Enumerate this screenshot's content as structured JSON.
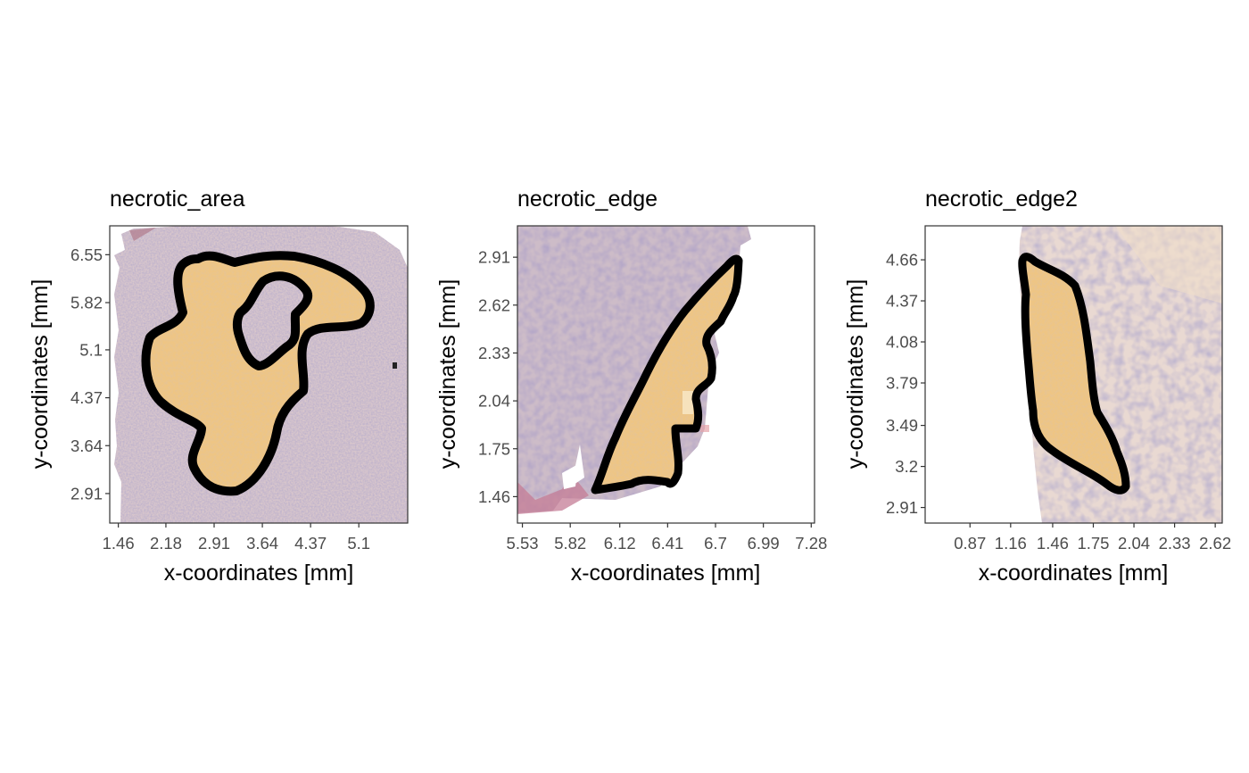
{
  "figure": {
    "background": "#ffffff"
  },
  "style": {
    "outline_color": "#000000",
    "region_fill": "#f2c98a",
    "tissue_light": "#e6d4cf",
    "tissue_dark": "#7a6a9a",
    "tissue_pink": "#c08aa0",
    "tick_label_color": "#4d4d4d"
  },
  "chart_data": [
    {
      "type": "image",
      "title": "necrotic_area",
      "xlabel": "x-coordinates [mm]",
      "ylabel": "y-coordinates [mm]",
      "xticks": [
        "1.46",
        "2.18",
        "2.91",
        "3.64",
        "4.37",
        "5.1"
      ],
      "yticks": [
        "6.55",
        "5.82",
        "5.1",
        "4.37",
        "3.64",
        "2.91"
      ],
      "xlim": [
        1.33,
        5.84
      ],
      "ylim": [
        2.46,
        6.99
      ],
      "grid": false,
      "annotation_region": "necrotic_area"
    },
    {
      "type": "image",
      "title": "necrotic_edge",
      "xlabel": "x-coordinates [mm]",
      "ylabel": "y-coordinates [mm]",
      "xticks": [
        "5.53",
        "5.82",
        "6.12",
        "6.41",
        "6.7",
        "6.99",
        "7.28"
      ],
      "yticks": [
        "2.91",
        "2.62",
        "2.33",
        "2.04",
        "1.75",
        "1.46"
      ],
      "xlim": [
        5.5,
        7.3
      ],
      "ylim": [
        1.3,
        3.1
      ],
      "grid": false,
      "annotation_region": "necrotic_edge"
    },
    {
      "type": "image",
      "title": "necrotic_edge2",
      "xlabel": "x-coordinates [mm]",
      "ylabel": "y-coordinates [mm]",
      "xticks": [
        "0.87",
        "1.16",
        "1.46",
        "1.75",
        "2.04",
        "2.33",
        "2.62"
      ],
      "yticks": [
        "4.66",
        "4.37",
        "4.08",
        "3.79",
        "3.49",
        "3.2",
        "2.91"
      ],
      "xlim": [
        0.55,
        2.67
      ],
      "ylim": [
        2.8,
        4.9
      ],
      "grid": false,
      "annotation_region": "necrotic_edge2"
    }
  ]
}
